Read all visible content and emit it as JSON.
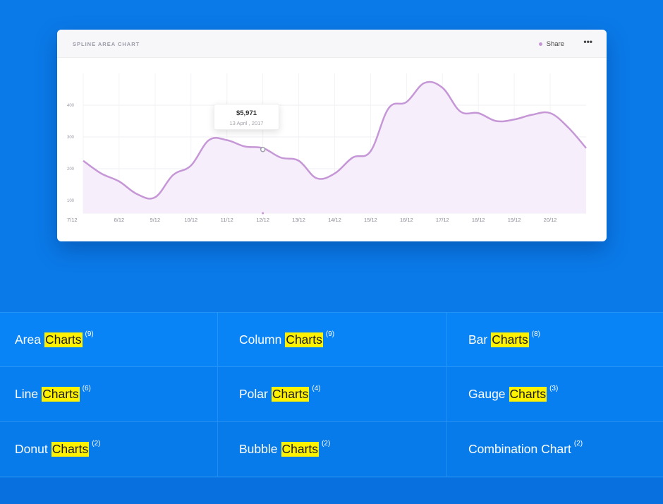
{
  "card": {
    "title": "SPLINE AREA CHART",
    "legend_label": "Share",
    "menu_icon": "more-dots-icon",
    "menu_glyph": "•••"
  },
  "tooltip": {
    "value": "$5,971",
    "date": "13 April , 2017"
  },
  "chart_data": {
    "type": "area",
    "title": "SPLINE AREA CHART",
    "xlabel": "",
    "ylabel": "",
    "legend": "top-right",
    "grid": true,
    "series_color": "#c697d6",
    "fill_color": "#f6eefb",
    "ylim": [
      60,
      500
    ],
    "y_ticks": [
      100,
      200,
      300,
      400
    ],
    "y_tick_labels": [
      "100",
      "200",
      "300",
      "400"
    ],
    "x_tick_labels": [
      "7/12",
      "8/12",
      "9/12",
      "10/12",
      "11/12",
      "12/12",
      "13/12",
      "14/12",
      "15/12",
      "16/12",
      "17/12",
      "18/12",
      "19/12",
      "20/12"
    ],
    "series": [
      {
        "name": "Share",
        "x": [
          0,
          0.5,
          1,
          1.5,
          2,
          2.5,
          3,
          3.5,
          4,
          4.5,
          5,
          5.5,
          6,
          6.5,
          7,
          7.5,
          8,
          8.5,
          9,
          9.5,
          10,
          10.5,
          11,
          11.5,
          12,
          12.5,
          13,
          13.5,
          14
        ],
        "values": [
          225,
          185,
          160,
          120,
          110,
          180,
          210,
          290,
          290,
          270,
          265,
          235,
          225,
          170,
          185,
          235,
          255,
          390,
          410,
          470,
          455,
          380,
          375,
          350,
          355,
          370,
          375,
          330,
          265
        ]
      }
    ]
  },
  "categories": [
    {
      "prefix": "Area",
      "highlight": "Charts",
      "count": "(9)"
    },
    {
      "prefix": "Column",
      "highlight": "Charts",
      "count": "(9)"
    },
    {
      "prefix": "Bar",
      "highlight": "Charts",
      "count": "(8)"
    },
    {
      "prefix": "Line",
      "highlight": "Charts",
      "count": "(6)"
    },
    {
      "prefix": "Polar",
      "highlight": "Charts",
      "count": "(4)"
    },
    {
      "prefix": "Gauge",
      "highlight": "Charts",
      "count": "(3)"
    },
    {
      "prefix": "Donut",
      "highlight": "Charts",
      "count": "(2)"
    },
    {
      "prefix": "Bubble",
      "highlight": "Charts",
      "count": "(2)"
    },
    {
      "prefix": "Combination Chart",
      "highlight": "",
      "count": "(2)"
    }
  ],
  "colors": {
    "background": "#0a7ae8",
    "highlight": "#fff200",
    "series": "#c697d6"
  }
}
